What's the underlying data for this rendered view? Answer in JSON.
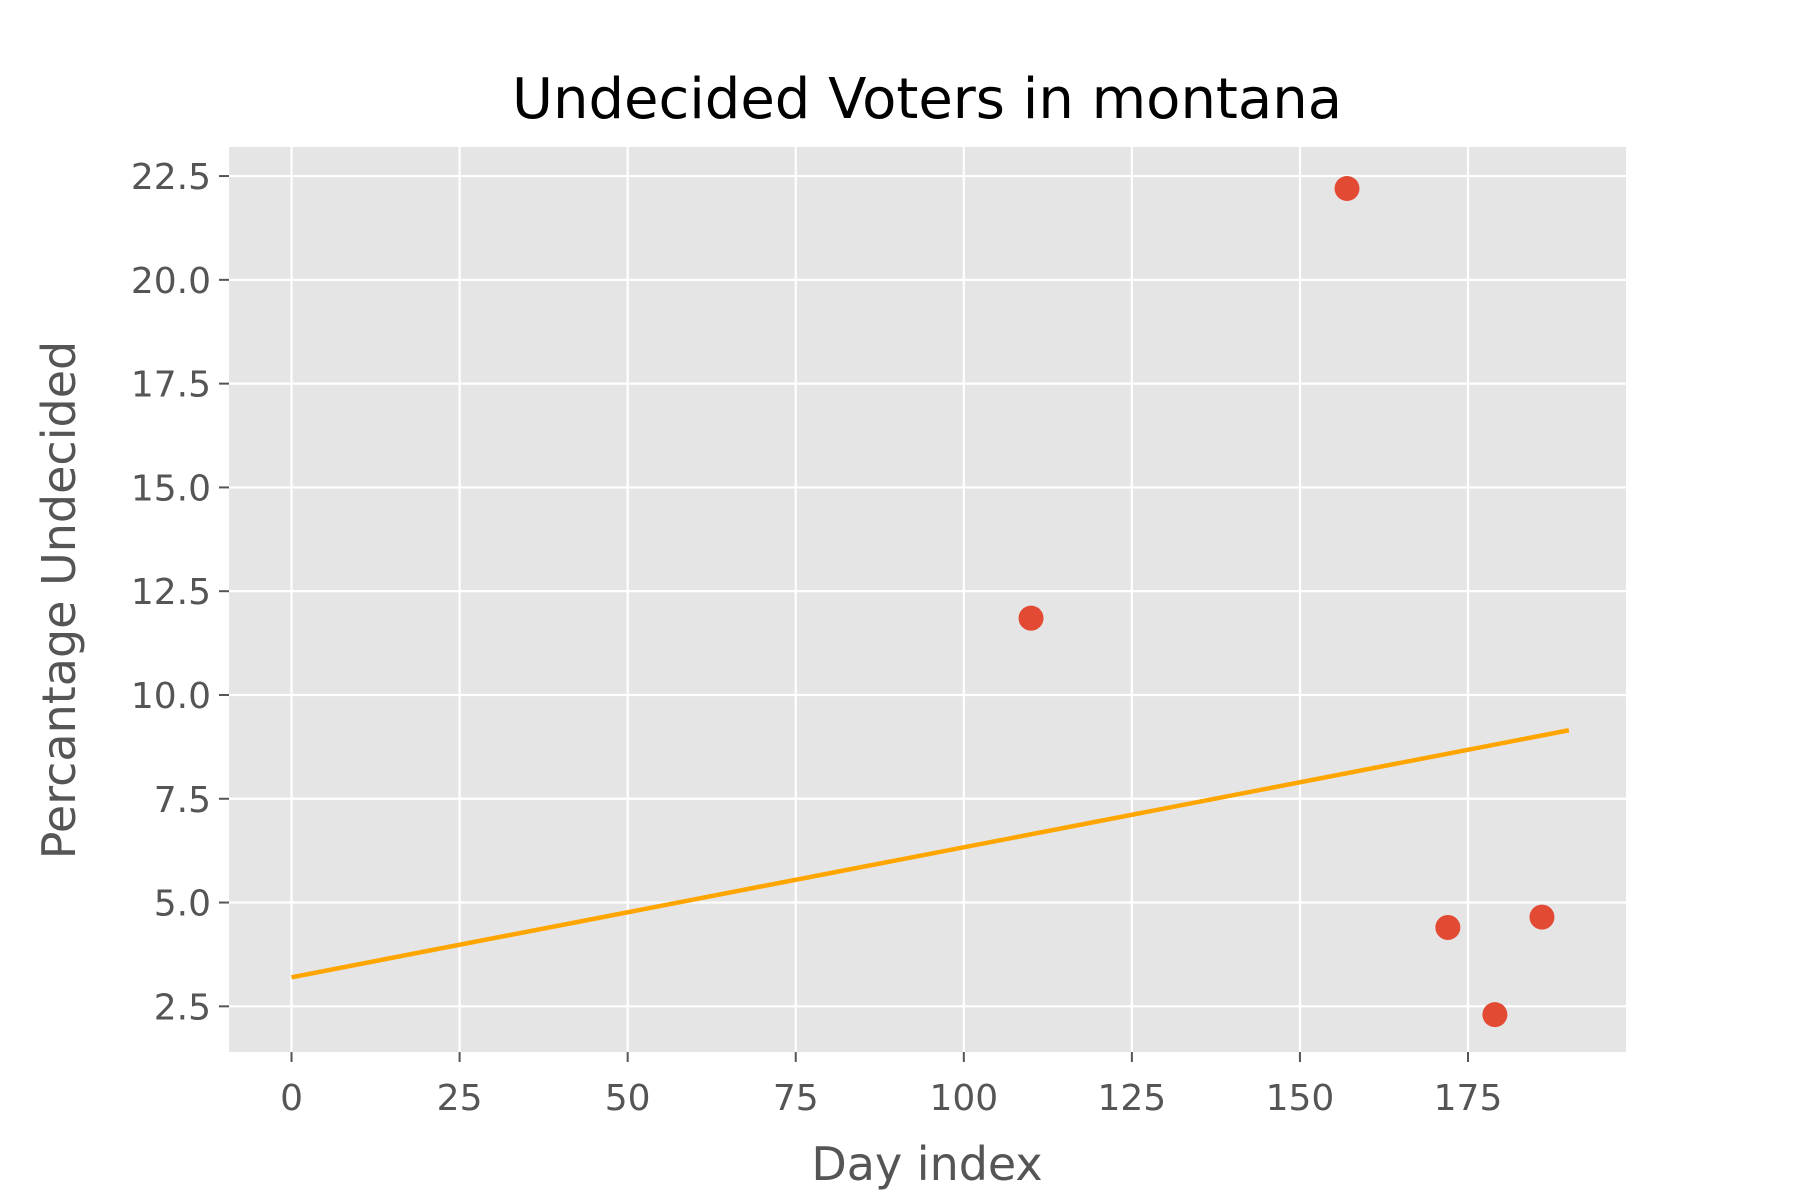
{
  "chart_data": {
    "type": "scatter",
    "title": "Undecided Voters in montana",
    "xlabel": "Day index",
    "ylabel": "Percantage Undecided",
    "xlim": [
      -9.3,
      198.5
    ],
    "ylim": [
      1.4,
      23.2
    ],
    "grid": true,
    "x_ticks": [
      0,
      25,
      50,
      75,
      100,
      125,
      150,
      175
    ],
    "x_tick_labels": [
      "0",
      "25",
      "50",
      "75",
      "100",
      "125",
      "150",
      "175"
    ],
    "y_ticks": [
      2.5,
      5.0,
      7.5,
      10.0,
      12.5,
      15.0,
      17.5,
      20.0,
      22.5
    ],
    "y_tick_labels": [
      "2.5",
      "5.0",
      "7.5",
      "10.0",
      "12.5",
      "15.0",
      "17.5",
      "20.0",
      "22.5"
    ],
    "series": [
      {
        "kind": "scatter",
        "color": "#E24A33",
        "points": [
          {
            "x": 110,
            "y": 11.85
          },
          {
            "x": 157,
            "y": 22.2
          },
          {
            "x": 172,
            "y": 4.4
          },
          {
            "x": 179,
            "y": 2.3
          },
          {
            "x": 186,
            "y": 4.65
          }
        ]
      },
      {
        "kind": "line",
        "color": "#FFA500",
        "points": [
          {
            "x": 0,
            "y": 3.2
          },
          {
            "x": 190,
            "y": 9.15
          }
        ]
      }
    ],
    "colors": {
      "plot_background": "#E5E5E5",
      "grid": "#FFFFFF",
      "tick_color": "#555555"
    }
  }
}
